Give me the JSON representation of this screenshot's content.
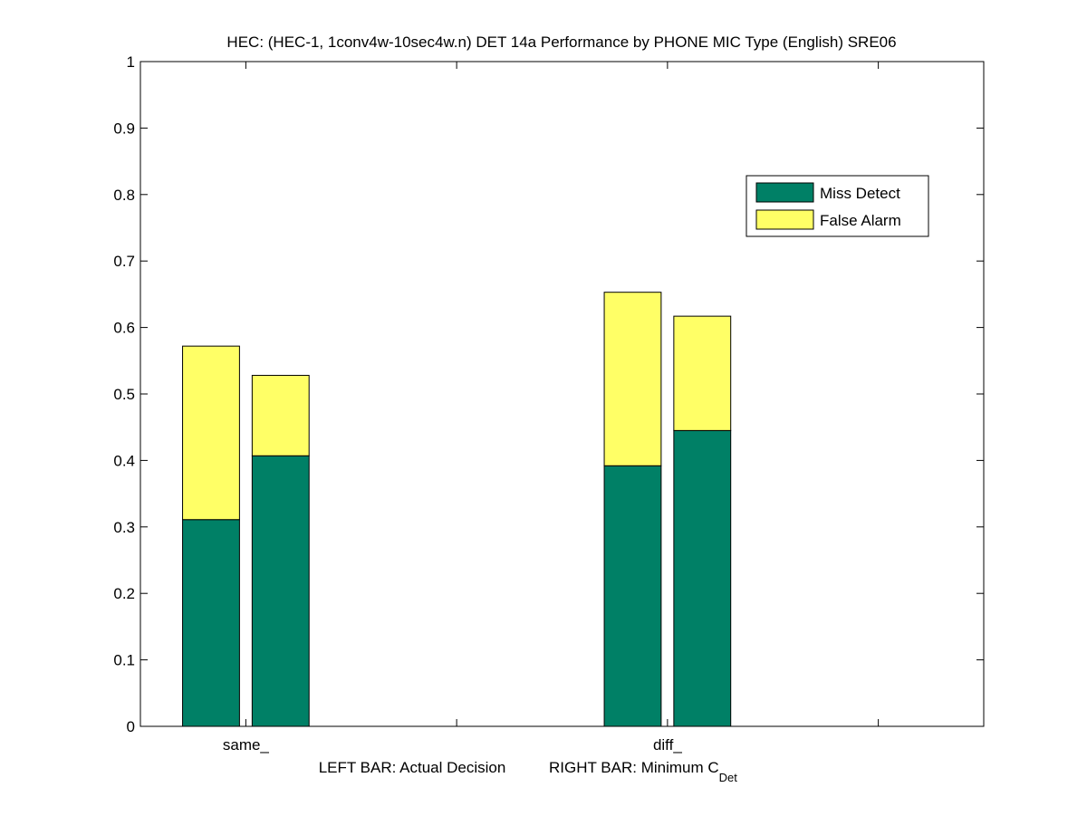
{
  "chart_data": {
    "type": "bar",
    "stacked": true,
    "title": "HEC: (HEC-1, 1conv4w-10sec4w.n) DET 14a Performance by PHONE MIC Type (English) SRE06",
    "xlabel": {
      "left_text": "LEFT BAR: Actual Decision",
      "right_text": "RIGHT BAR: Minimum C",
      "right_subscript": "Det"
    },
    "ylabel": "",
    "ylim": [
      0,
      1
    ],
    "yticks": [
      "0",
      "0.1",
      "0.2",
      "0.3",
      "0.4",
      "0.5",
      "0.6",
      "0.7",
      "0.8",
      "0.9",
      "1"
    ],
    "categories": [
      "same_",
      "diff_"
    ],
    "bars_per_category": [
      "Actual Decision",
      "Minimum C_Det"
    ],
    "series": [
      {
        "name": "Miss Detect",
        "color": "#008066",
        "values": [
          [
            0.311,
            0.407
          ],
          [
            0.392,
            0.445
          ]
        ]
      },
      {
        "name": "False Alarm",
        "color": "#ffff66",
        "values": [
          [
            0.261,
            0.121
          ],
          [
            0.261,
            0.172
          ]
        ]
      }
    ],
    "totals": [
      [
        0.572,
        0.528
      ],
      [
        0.653,
        0.617
      ]
    ],
    "legend": {
      "position": "top-right",
      "entries": [
        "Miss Detect",
        "False Alarm"
      ]
    },
    "grid": false
  }
}
